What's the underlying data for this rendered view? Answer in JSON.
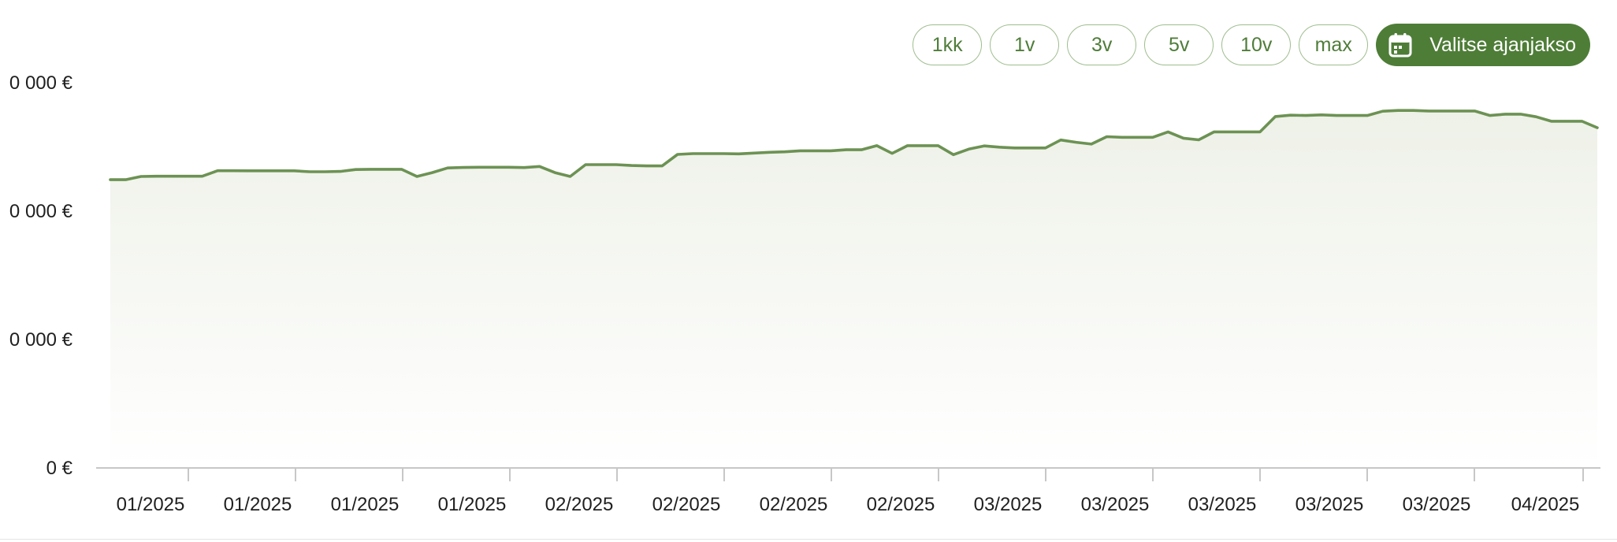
{
  "toolbar": {
    "ranges": [
      "1kk",
      "1v",
      "3v",
      "5v",
      "10v",
      "max"
    ],
    "period_label": "Valitse ajanjakso",
    "period_icon": "calendar-icon"
  },
  "colors": {
    "accent": "#4e7d37",
    "line": "#6c9253",
    "area_top": "#eef1e8",
    "button_border": "#9fbd8f"
  },
  "chart_data": {
    "type": "area",
    "title": "",
    "xlabel": "",
    "ylabel": "",
    "grid": false,
    "legend": "none",
    "ylim": [
      0,
      3000
    ],
    "y_ticks": [
      {
        "value": 0,
        "label": "0 €"
      },
      {
        "value": 1000,
        "label": "0 000 €"
      },
      {
        "value": 2000,
        "label": "0 000 €"
      },
      {
        "value": 3000,
        "label": "0 000 €"
      }
    ],
    "x_tick_labels": [
      "01/2025",
      "01/2025",
      "01/2025",
      "01/2025",
      "02/2025",
      "02/2025",
      "02/2025",
      "02/2025",
      "03/2025",
      "03/2025",
      "03/2025",
      "03/2025",
      "03/2025",
      "04/2025"
    ],
    "series": [
      {
        "values": [
          2245,
          2245,
          2270,
          2272,
          2272,
          2272,
          2272,
          2315,
          2315,
          2314,
          2314,
          2314,
          2314,
          2307,
          2307,
          2309,
          2324,
          2326,
          2326,
          2326,
          2270,
          2300,
          2336,
          2340,
          2342,
          2342,
          2342,
          2339,
          2348,
          2300,
          2270,
          2362,
          2362,
          2362,
          2355,
          2352,
          2352,
          2442,
          2448,
          2448,
          2448,
          2446,
          2452,
          2458,
          2462,
          2470,
          2470,
          2470,
          2478,
          2478,
          2510,
          2450,
          2510,
          2510,
          2510,
          2440,
          2483,
          2508,
          2498,
          2492,
          2492,
          2492,
          2554,
          2536,
          2522,
          2580,
          2575,
          2575,
          2575,
          2617,
          2568,
          2555,
          2617,
          2617,
          2617,
          2617,
          2737,
          2747,
          2745,
          2750,
          2745,
          2745,
          2745,
          2778,
          2784,
          2784,
          2780,
          2780,
          2780,
          2780,
          2745,
          2755,
          2755,
          2735,
          2700,
          2700,
          2700,
          2650
        ]
      }
    ]
  }
}
